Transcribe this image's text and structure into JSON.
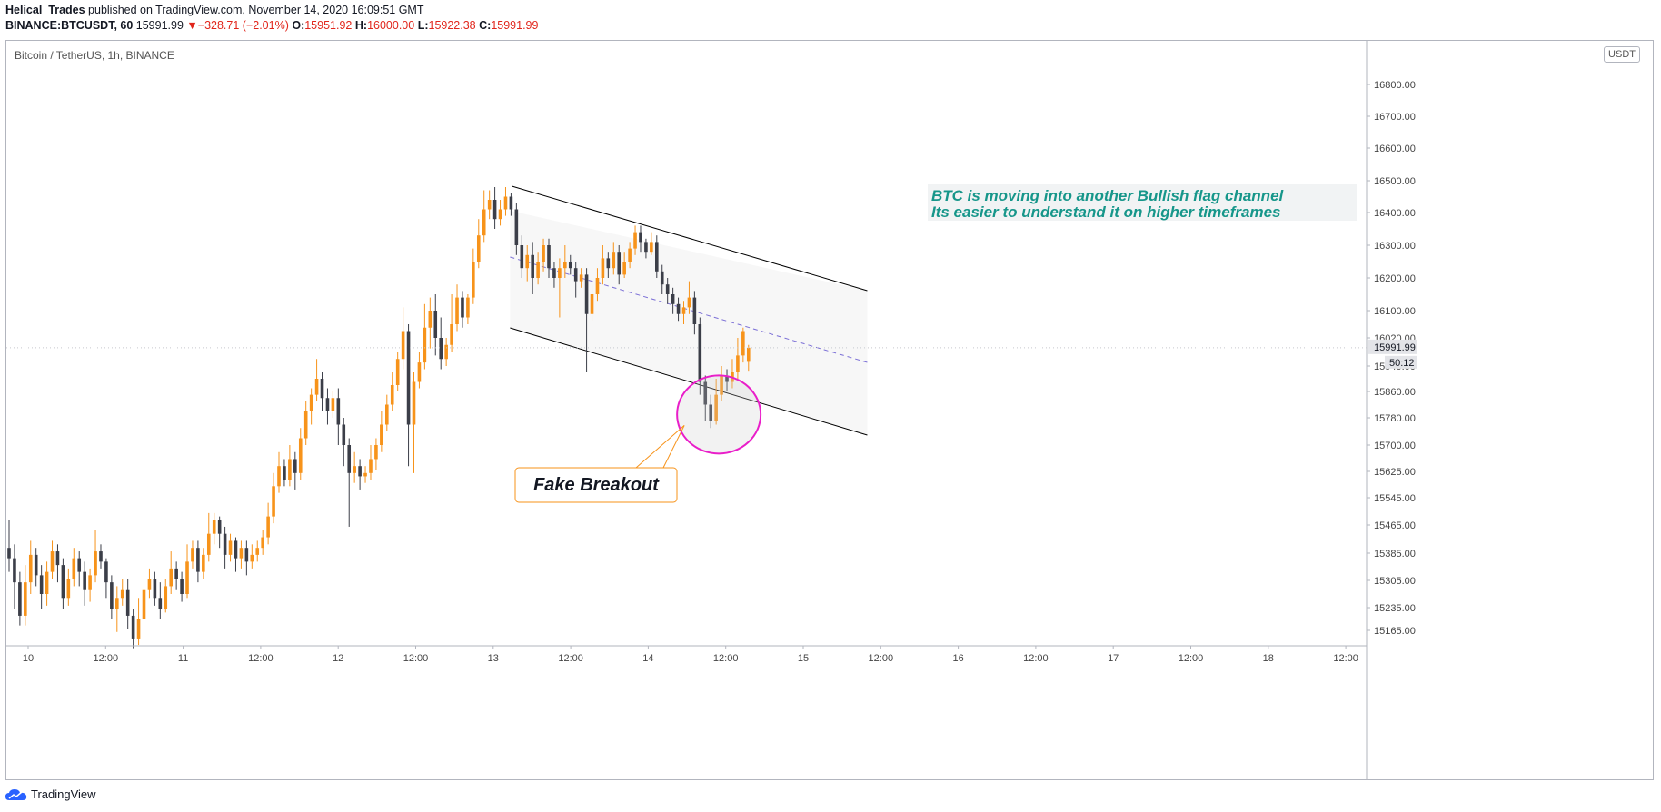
{
  "header": {
    "author": "Helical_Trades",
    "published_text": "published on TradingView.com, November 14, 2020 16:09:51 GMT",
    "symbol": "BINANCE:BTCUSDT, 60",
    "last": "15991.99",
    "change": "−328.71 (−2.01%)",
    "o_label": "O:",
    "o_value": "15951.92",
    "h_label": "H:",
    "h_value": "16000.00",
    "l_label": "L:",
    "l_value": "15922.38",
    "c_label": "C:",
    "c_value": "15991.99"
  },
  "footer": {
    "brand": "TradingView"
  },
  "colors": {
    "up": "#f7931a",
    "down": "#3b3e48",
    "channel": "#000000",
    "midline": "#7b6fd6",
    "circle": "#e91ec9",
    "callout": "#f7931a",
    "note": "#16968a"
  },
  "chart_data": {
    "type": "candlestick",
    "title": "Bitcoin / TetherUS, 1h, BINANCE",
    "currency": "USDT",
    "y_ticks": [
      "16800.00",
      "16700.00",
      "16600.00",
      "16500.00",
      "16400.00",
      "16300.00",
      "16200.00",
      "16100.00",
      "16020.00",
      "15940.00",
      "15860.00",
      "15780.00",
      "15700.00",
      "15625.00",
      "15545.00",
      "15465.00",
      "15385.00",
      "15305.00",
      "15235.00",
      "15165.00"
    ],
    "x_ticks": [
      "10",
      "12:00",
      "11",
      "12:00",
      "12",
      "12:00",
      "13",
      "12:00",
      "14",
      "12:00",
      "15",
      "12:00",
      "16",
      "12:00",
      "17",
      "12:00",
      "18",
      "12:00"
    ],
    "last_price_label": "15991.99",
    "countdown_label": "50:12",
    "annotation_note": [
      "BTC is moving into another Bullish flag channel",
      "Its easier to understand it on higher timeframes"
    ],
    "callout_label": "Fake Breakout",
    "candles": [
      [
        15400,
        15370,
        15480,
        15330
      ],
      [
        15370,
        15300,
        15410,
        15230
      ],
      [
        15300,
        15210,
        15330,
        15180
      ],
      [
        15210,
        15300,
        15350,
        15180
      ],
      [
        15300,
        15380,
        15420,
        15270
      ],
      [
        15380,
        15320,
        15400,
        15290
      ],
      [
        15320,
        15270,
        15350,
        15230
      ],
      [
        15270,
        15330,
        15360,
        15240
      ],
      [
        15330,
        15390,
        15420,
        15310
      ],
      [
        15390,
        15350,
        15410,
        15300
      ],
      [
        15350,
        15260,
        15370,
        15230
      ],
      [
        15260,
        15310,
        15340,
        15240
      ],
      [
        15310,
        15370,
        15400,
        15290
      ],
      [
        15370,
        15330,
        15390,
        15290
      ],
      [
        15330,
        15280,
        15360,
        15240
      ],
      [
        15280,
        15320,
        15340,
        15250
      ],
      [
        15320,
        15390,
        15450,
        15300
      ],
      [
        15390,
        15360,
        15410,
        15340
      ],
      [
        15360,
        15300,
        15370,
        15260
      ],
      [
        15300,
        15230,
        15320,
        15200
      ],
      [
        15230,
        15260,
        15290,
        15160
      ],
      [
        15260,
        15280,
        15310,
        15240
      ],
      [
        15280,
        15210,
        15310,
        15170
      ],
      [
        15210,
        15140,
        15230,
        15110
      ],
      [
        15140,
        15200,
        15260,
        15120
      ],
      [
        15200,
        15280,
        15330,
        15180
      ],
      [
        15280,
        15310,
        15340,
        15260
      ],
      [
        15310,
        15260,
        15330,
        15240
      ],
      [
        15260,
        15230,
        15300,
        15200
      ],
      [
        15230,
        15290,
        15310,
        15220
      ],
      [
        15290,
        15340,
        15390,
        15270
      ],
      [
        15340,
        15310,
        15360,
        15280
      ],
      [
        15310,
        15270,
        15330,
        15250
      ],
      [
        15270,
        15360,
        15410,
        15260
      ],
      [
        15360,
        15400,
        15420,
        15340
      ],
      [
        15400,
        15330,
        15420,
        15300
      ],
      [
        15330,
        15380,
        15400,
        15310
      ],
      [
        15380,
        15440,
        15500,
        15360
      ],
      [
        15440,
        15480,
        15500,
        15410
      ],
      [
        15480,
        15440,
        15490,
        15400
      ],
      [
        15440,
        15380,
        15460,
        15340
      ],
      [
        15380,
        15420,
        15440,
        15360
      ],
      [
        15420,
        15370,
        15430,
        15330
      ],
      [
        15370,
        15400,
        15420,
        15340
      ],
      [
        15400,
        15360,
        15420,
        15320
      ],
      [
        15360,
        15380,
        15410,
        15340
      ],
      [
        15380,
        15400,
        15420,
        15360
      ],
      [
        15400,
        15430,
        15450,
        15380
      ],
      [
        15430,
        15490,
        15530,
        15410
      ],
      [
        15490,
        15580,
        15620,
        15470
      ],
      [
        15580,
        15640,
        15680,
        15560
      ],
      [
        15640,
        15600,
        15660,
        15580
      ],
      [
        15600,
        15660,
        15700,
        15580
      ],
      [
        15660,
        15620,
        15680,
        15570
      ],
      [
        15620,
        15720,
        15750,
        15600
      ],
      [
        15720,
        15800,
        15830,
        15700
      ],
      [
        15800,
        15850,
        15870,
        15760
      ],
      [
        15850,
        15900,
        15960,
        15830
      ],
      [
        15900,
        15840,
        15920,
        15800
      ],
      [
        15840,
        15800,
        15870,
        15760
      ],
      [
        15800,
        15840,
        15860,
        15780
      ],
      [
        15840,
        15760,
        15870,
        15700
      ],
      [
        15760,
        15700,
        15780,
        15640
      ],
      [
        15700,
        15620,
        15720,
        15460
      ],
      [
        15620,
        15640,
        15680,
        15590
      ],
      [
        15640,
        15610,
        15660,
        15570
      ],
      [
        15610,
        15620,
        15640,
        15590
      ],
      [
        15620,
        15660,
        15700,
        15600
      ],
      [
        15660,
        15700,
        15720,
        15630
      ],
      [
        15700,
        15760,
        15800,
        15680
      ],
      [
        15760,
        15820,
        15850,
        15740
      ],
      [
        15820,
        15880,
        15920,
        15800
      ],
      [
        15880,
        15960,
        15980,
        15860
      ],
      [
        15960,
        16040,
        16110,
        15930
      ],
      [
        16040,
        15760,
        16060,
        15640
      ],
      [
        15760,
        15890,
        15920,
        15620
      ],
      [
        15890,
        15950,
        15980,
        15870
      ],
      [
        15950,
        16050,
        16120,
        15930
      ],
      [
        16050,
        16100,
        16140,
        15990
      ],
      [
        16100,
        16020,
        16150,
        15970
      ],
      [
        16020,
        15960,
        16080,
        15930
      ],
      [
        15960,
        16000,
        16020,
        15940
      ],
      [
        16000,
        16060,
        16150,
        15980
      ],
      [
        16060,
        16140,
        16180,
        16040
      ],
      [
        16140,
        16080,
        16160,
        16050
      ],
      [
        16080,
        16140,
        16150,
        16060
      ],
      [
        16140,
        16250,
        16290,
        16120
      ],
      [
        16250,
        16330,
        16380,
        16230
      ],
      [
        16330,
        16410,
        16470,
        16310
      ],
      [
        16410,
        16440,
        16470,
        16380
      ],
      [
        16440,
        16380,
        16480,
        16350
      ],
      [
        16380,
        16410,
        16440,
        16360
      ],
      [
        16410,
        16450,
        16480,
        16390
      ],
      [
        16450,
        16410,
        16460,
        16390
      ],
      [
        16410,
        16300,
        16430,
        16270
      ],
      [
        16300,
        16230,
        16330,
        16200
      ],
      [
        16230,
        16270,
        16300,
        16190
      ],
      [
        16270,
        16200,
        16310,
        16150
      ],
      [
        16200,
        16250,
        16280,
        16180
      ],
      [
        16250,
        16300,
        16320,
        16220
      ],
      [
        16300,
        16230,
        16320,
        16200
      ],
      [
        16230,
        16200,
        16250,
        16170
      ],
      [
        16200,
        16230,
        16260,
        16080
      ],
      [
        16230,
        16250,
        16300,
        16200
      ],
      [
        16250,
        16230,
        16270,
        16210
      ],
      [
        16230,
        16190,
        16250,
        16140
      ],
      [
        16190,
        16210,
        16230,
        16170
      ],
      [
        16210,
        16090,
        16230,
        15920
      ],
      [
        16090,
        16150,
        16180,
        16070
      ],
      [
        16150,
        16200,
        16230,
        16130
      ],
      [
        16200,
        16260,
        16300,
        16180
      ],
      [
        16260,
        16230,
        16280,
        16200
      ],
      [
        16230,
        16280,
        16310,
        16210
      ],
      [
        16280,
        16210,
        16300,
        16180
      ],
      [
        16210,
        16250,
        16280,
        16200
      ],
      [
        16250,
        16290,
        16310,
        16230
      ],
      [
        16290,
        16340,
        16360,
        16270
      ],
      [
        16340,
        16310,
        16360,
        16280
      ],
      [
        16310,
        16280,
        16320,
        16260
      ],
      [
        16280,
        16310,
        16340,
        16270
      ],
      [
        16310,
        16220,
        16330,
        16200
      ],
      [
        16220,
        16180,
        16240,
        16150
      ],
      [
        16180,
        16150,
        16200,
        16120
      ],
      [
        16150,
        16120,
        16170,
        16090
      ],
      [
        16120,
        16090,
        16140,
        16070
      ],
      [
        16090,
        16110,
        16130,
        16060
      ],
      [
        16110,
        16140,
        16190,
        16090
      ],
      [
        16140,
        16060,
        16160,
        16030
      ],
      [
        16060,
        15890,
        16080,
        15850
      ],
      [
        15890,
        15820,
        15910,
        15770
      ],
      [
        15820,
        15770,
        15850,
        15750
      ],
      [
        15770,
        15850,
        15900,
        15760
      ],
      [
        15850,
        15910,
        15940,
        15830
      ],
      [
        15910,
        15890,
        15930,
        15860
      ],
      [
        15890,
        15920,
        15960,
        15870
      ],
      [
        15920,
        15970,
        16020,
        15900
      ],
      [
        15970,
        16040,
        16050,
        15950
      ],
      [
        15951.92,
        15991.99,
        16000,
        15922.38
      ]
    ]
  }
}
